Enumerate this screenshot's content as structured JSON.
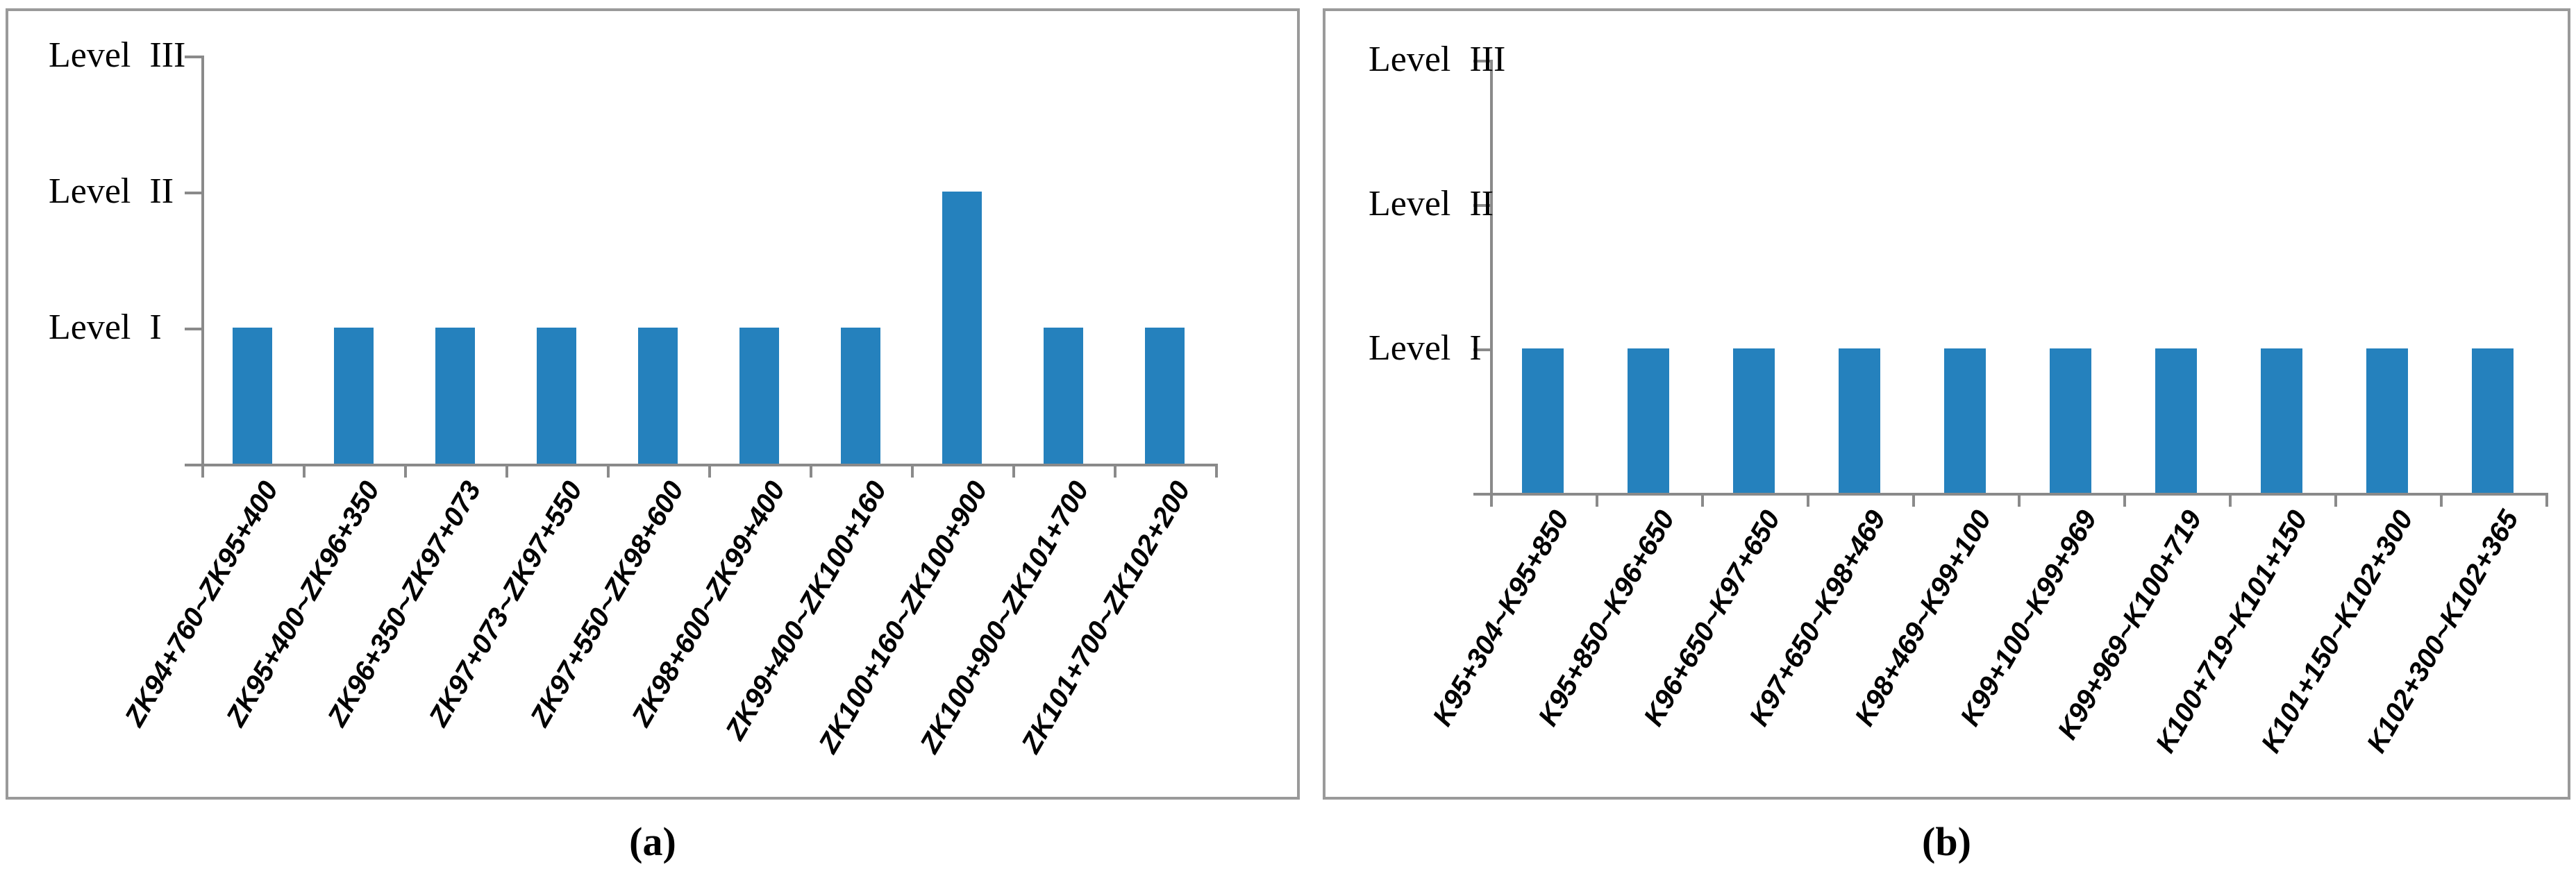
{
  "figure": {
    "captions": {
      "a": "(a)",
      "b": "(b)"
    },
    "colors": {
      "bar": "#2581bd",
      "axis": "#8a8a8a",
      "panel_border": "#9a9a9a"
    }
  },
  "chart_data": [
    {
      "id": "a",
      "type": "bar",
      "title": "",
      "xlabel": "",
      "ylabel": "",
      "categories": [
        "ZK94+760~ZK95+400",
        "ZK95+400~ZK96+350",
        "ZK96+350~ZK97+073",
        "ZK97+073~ZK97+550",
        "ZK97+550~ZK98+600",
        "ZK98+600~ZK99+400",
        "ZK99+400~ZK100+160",
        "ZK100+160~ZK100+900",
        "ZK100+900~ZK101+700",
        "ZK101+700~ZK102+200"
      ],
      "values": [
        1,
        1,
        1,
        1,
        1,
        1,
        1,
        2,
        1,
        1
      ],
      "y_tick_labels": [
        "Level I",
        "Level II",
        "Level III"
      ],
      "ylim": [
        0,
        3
      ],
      "grid": false,
      "legend": false,
      "bar_color": "#2581bd",
      "axis_color": "#8a8a8a"
    },
    {
      "id": "b",
      "type": "bar",
      "title": "",
      "xlabel": "",
      "ylabel": "",
      "categories": [
        "K95+304~K95+850",
        "K95+850~K96+650",
        "K96+650~K97+650",
        "K97+650~K98+469",
        "K98+469~K99+100",
        "K99+100~K99+969",
        "K99+969~K100+719",
        "K100+719~K101+150",
        "K101+150~K102+300",
        "K102+300~K102+365"
      ],
      "values": [
        1,
        1,
        1,
        1,
        1,
        1,
        1,
        1,
        1,
        1
      ],
      "y_tick_labels": [
        "Level I",
        "Level II",
        "Level III"
      ],
      "ylim": [
        0,
        3
      ],
      "grid": false,
      "legend": false,
      "bar_color": "#2581bd",
      "axis_color": "#8a8a8a"
    }
  ]
}
